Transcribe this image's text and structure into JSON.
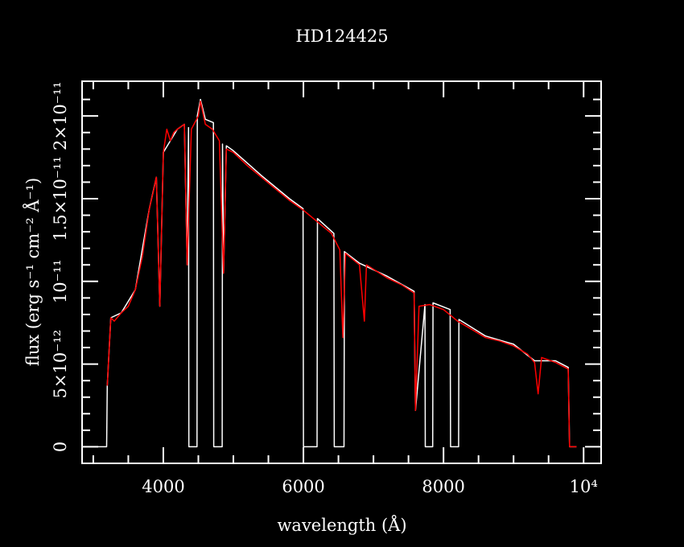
{
  "chart_data": {
    "type": "line",
    "title": "HD124425",
    "x_label": "wavelength (Å)",
    "y_label": "flux (erg s⁻¹ cm⁻² Å⁻¹)",
    "xlim": [
      2840,
      10250
    ],
    "ylim": [
      -1e-12,
      2.21e-11
    ],
    "xticks": [
      4000,
      6000,
      8000,
      {
        "value": 10000,
        "label": "10⁴"
      }
    ],
    "yticks": [
      0,
      {
        "value": 5e-12,
        "label": "5×10⁻¹²"
      },
      {
        "value": 1e-11,
        "label": "10⁻¹¹"
      },
      {
        "value": 1.5e-11,
        "label": "1.5×10⁻¹¹"
      },
      {
        "value": 2e-11,
        "label": "2×10⁻¹¹"
      }
    ],
    "xminorticks": [
      3000,
      3500,
      4500,
      5000,
      5500,
      6500,
      7000,
      7500,
      8500,
      9000,
      9500
    ],
    "yminorticks": [
      1e-12,
      2e-12,
      3e-12,
      4e-12,
      6e-12,
      7e-12,
      8e-12,
      9e-12,
      1.1e-11,
      1.2e-11,
      1.3e-11,
      1.4e-11,
      1.6e-11,
      1.7e-11,
      1.8e-11,
      1.9e-11,
      2.1e-11
    ],
    "series": [
      {
        "color": "#ffffff",
        "x": [
          2850,
          3190,
          3200,
          3250,
          3400,
          3600,
          3800,
          3900,
          3950,
          4000,
          4100,
          4200,
          4300,
          4340,
          4360,
          4365,
          4480,
          4485,
          4530,
          4600,
          4715,
          4720,
          4840,
          4845,
          4860,
          4900,
          5000,
          5400,
          5800,
          5995,
          6000,
          6195,
          6200,
          6435,
          6440,
          6580,
          6585,
          6800,
          7200,
          7580,
          7600,
          7735,
          7740,
          7845,
          7850,
          8095,
          8100,
          8215,
          8220,
          8600,
          9000,
          9300,
          9600,
          9780,
          9800,
          9900
        ],
        "values": [
          0,
          0,
          3.7e-12,
          7.8e-12,
          8.1e-12,
          9.5e-12,
          1.44e-11,
          1.63e-11,
          8.5e-12,
          1.78e-11,
          1.85e-11,
          1.92e-11,
          1.95e-11,
          1.1e-11,
          1.93e-11,
          0,
          0,
          2e-11,
          2.1e-11,
          1.98e-11,
          1.96e-11,
          0,
          0,
          1.83e-11,
          1.05e-11,
          1.82e-11,
          1.79e-11,
          1.64e-11,
          1.5e-11,
          1.44e-11,
          0,
          0,
          1.38e-11,
          1.29e-11,
          0,
          0,
          1.18e-11,
          1.11e-11,
          1.03e-11,
          9.4e-12,
          2.2e-12,
          8.6e-12,
          0,
          0,
          8.7e-12,
          8.3e-12,
          0,
          0,
          7.7e-12,
          6.7e-12,
          6.2e-12,
          5.2e-12,
          5.2e-12,
          4.8e-12,
          0,
          0
        ]
      },
      {
        "color": "#ff0000",
        "x": [
          3200,
          3250,
          3300,
          3400,
          3500,
          3600,
          3700,
          3800,
          3850,
          3900,
          3950,
          4000,
          4050,
          4100,
          4150,
          4200,
          4300,
          4340,
          4400,
          4500,
          4530,
          4600,
          4700,
          4800,
          4860,
          4900,
          5000,
          5200,
          5400,
          5600,
          5800,
          6000,
          6200,
          6400,
          6520,
          6563,
          6600,
          6800,
          6870,
          6900,
          7200,
          7400,
          7580,
          7600,
          7650,
          7800,
          8000,
          8200,
          8400,
          8600,
          8800,
          9000,
          9200,
          9300,
          9350,
          9400,
          9600,
          9780,
          9800,
          9900
        ],
        "values": [
          3.7e-12,
          7.8e-12,
          7.6e-12,
          8.1e-12,
          8.5e-12,
          9.5e-12,
          1.15e-11,
          1.44e-11,
          1.53e-11,
          1.63e-11,
          8.5e-12,
          1.78e-11,
          1.92e-11,
          1.85e-11,
          1.9e-11,
          1.92e-11,
          1.95e-11,
          1.1e-11,
          1.92e-11,
          2e-11,
          2.09e-11,
          1.95e-11,
          1.92e-11,
          1.85e-11,
          1.05e-11,
          1.8e-11,
          1.78e-11,
          1.7e-11,
          1.63e-11,
          1.56e-11,
          1.49e-11,
          1.43e-11,
          1.36e-11,
          1.29e-11,
          1.19e-11,
          6.6e-12,
          1.17e-11,
          1.1e-11,
          7.6e-12,
          1.1e-11,
          1.02e-11,
          9.8e-12,
          9.3e-12,
          2.2e-12,
          8.5e-12,
          8.6e-12,
          8.3e-12,
          7.6e-12,
          7.1e-12,
          6.6e-12,
          6.4e-12,
          6.1e-12,
          5.6e-12,
          5.1e-12,
          3.2e-12,
          5.4e-12,
          5.1e-12,
          4.7e-12,
          0,
          0
        ]
      }
    ]
  }
}
